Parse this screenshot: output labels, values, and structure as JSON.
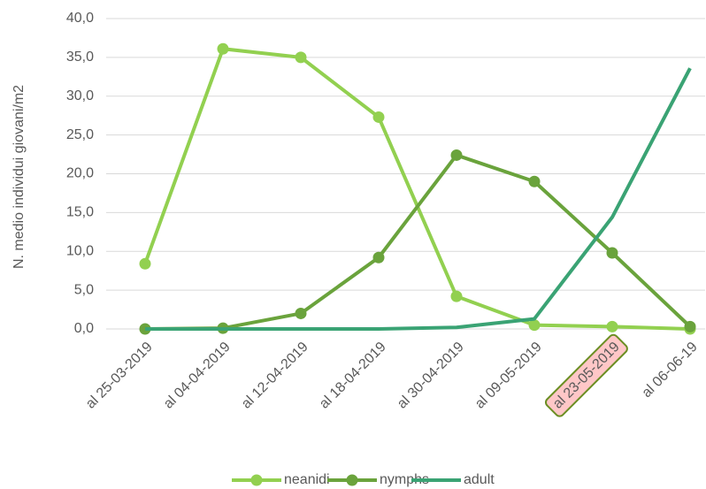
{
  "chart_data": {
    "type": "line",
    "y_label": "N. medio individui giovani/m2",
    "categories": [
      "al 25-03-2019",
      "al 04-04-2019",
      "al 12-04-2019",
      "al 18-04-2019",
      "al 30-04-2019",
      "al 09-05-2019",
      "al 23-05-2019",
      "al 06-06-19"
    ],
    "highlighted_category": 6,
    "series": [
      {
        "name": "neanidi",
        "color": "#92d050",
        "markers": true,
        "values": [
          8.4,
          36.1,
          35.0,
          27.3,
          4.2,
          0.5,
          0.3,
          0.0
        ]
      },
      {
        "name": "nymphs",
        "color": "#6aa33c",
        "markers": true,
        "values": [
          0.0,
          0.1,
          2.0,
          9.2,
          22.4,
          19.0,
          9.8,
          0.3
        ]
      },
      {
        "name": "adult",
        "color": "#3aa374",
        "markers": false,
        "values": [
          0.0,
          0.0,
          0.0,
          0.0,
          0.2,
          1.3,
          14.4,
          33.6
        ]
      }
    ],
    "ylim": [
      0,
      40
    ],
    "yticks": [
      {
        "value": 0,
        "label": "0,0"
      },
      {
        "value": 5,
        "label": "5,0"
      },
      {
        "value": 10,
        "label": "10,0"
      },
      {
        "value": 15,
        "label": "15,0"
      },
      {
        "value": 20,
        "label": "20,0"
      },
      {
        "value": 25,
        "label": "25,0"
      },
      {
        "value": 30,
        "label": "30,0"
      },
      {
        "value": 35,
        "label": "35,0"
      },
      {
        "value": 40,
        "label": "40,0"
      }
    ],
    "grid": true,
    "legend": "bottom"
  }
}
